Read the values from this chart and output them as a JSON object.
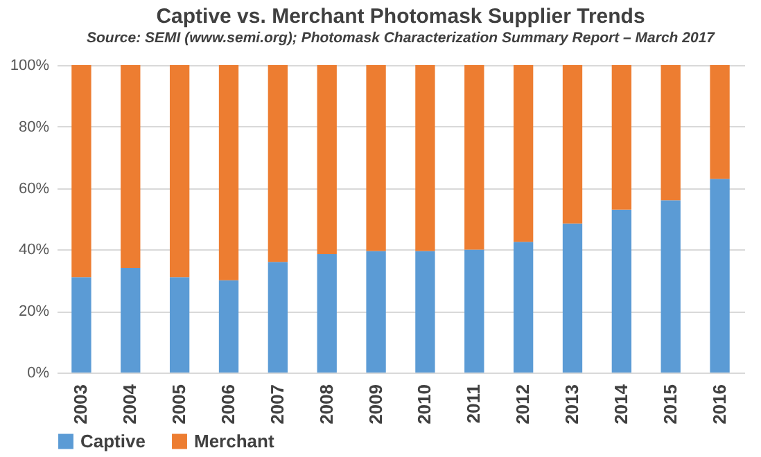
{
  "chart_data": {
    "type": "bar",
    "title": "Captive vs. Merchant Photomask Supplier Trends",
    "subtitle": "Source: SEMI (www.semi.org); Photomask Characterization Summary Report – March 2017",
    "categories": [
      "2003",
      "2004",
      "2005",
      "2006",
      "2007",
      "2008",
      "2009",
      "2010",
      "2011",
      "2012",
      "2013",
      "2014",
      "2015",
      "2016"
    ],
    "series": [
      {
        "name": "Captive",
        "color": "#5b9bd5",
        "values": [
          31,
          34,
          31,
          30,
          36,
          38.5,
          39.5,
          39.5,
          40,
          42.5,
          48.5,
          53,
          56,
          63
        ]
      },
      {
        "name": "Merchant",
        "color": "#ed7d31",
        "values": [
          69,
          66,
          69,
          70,
          64,
          61.5,
          60.5,
          60.5,
          60,
          57.5,
          51.5,
          47,
          44,
          37
        ]
      }
    ],
    "stacked": true,
    "ylim": [
      0,
      100
    ],
    "yticks": [
      {
        "value": 0,
        "label": "0%"
      },
      {
        "value": 20,
        "label": "20%"
      },
      {
        "value": 40,
        "label": "40%"
      },
      {
        "value": 60,
        "label": "60%"
      },
      {
        "value": 80,
        "label": "80%"
      },
      {
        "value": 100,
        "label": "100%"
      }
    ],
    "grid": "y",
    "legend": "bottom"
  }
}
